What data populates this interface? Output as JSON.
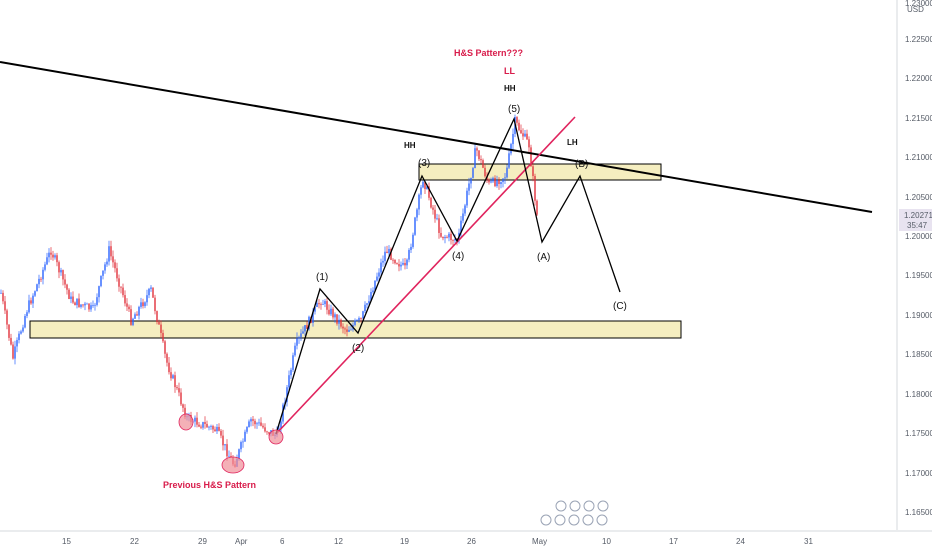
{
  "chart_data": {
    "type": "candlestick",
    "currency": "USD",
    "current_price": "1.20271",
    "countdown": "35:47",
    "y_ticks": [
      "1.16500",
      "1.17000",
      "1.17500",
      "1.18000",
      "1.18500",
      "1.19000",
      "1.19500",
      "1.20000",
      "1.20500",
      "1.21000",
      "1.21500",
      "1.22000",
      "1.22500",
      "1.23000"
    ],
    "x_ticks": [
      "15",
      "22",
      "29",
      "Apr",
      "6",
      "12",
      "19",
      "26",
      "May",
      "10",
      "17",
      "24",
      "31"
    ],
    "wave_labels": [
      "(1)",
      "(2)",
      "(3)",
      "(4)",
      "(5)",
      "(A)",
      "(B)",
      "(C)"
    ],
    "annotations": {
      "hs_pattern": "H&S Pattern???",
      "ll": "LL",
      "hh_top": "HH",
      "hh_left": "HH",
      "lh": "LH",
      "previous_hs": "Previous H&S Pattern"
    },
    "zones": [
      {
        "name": "upper-zone",
        "from": 1.2075,
        "to": 1.2095
      },
      {
        "name": "lower-zone",
        "from": 1.187,
        "to": 1.189
      }
    ],
    "grid": false,
    "colors": {
      "up": "#2962ff",
      "down": "#e0303a",
      "trendline_red": "#e0245e",
      "trendline_black": "#000000",
      "zone_fill": "#f5eec0",
      "highlight": "#ef8e99",
      "current_price_bg": "#e8e3f0"
    }
  }
}
